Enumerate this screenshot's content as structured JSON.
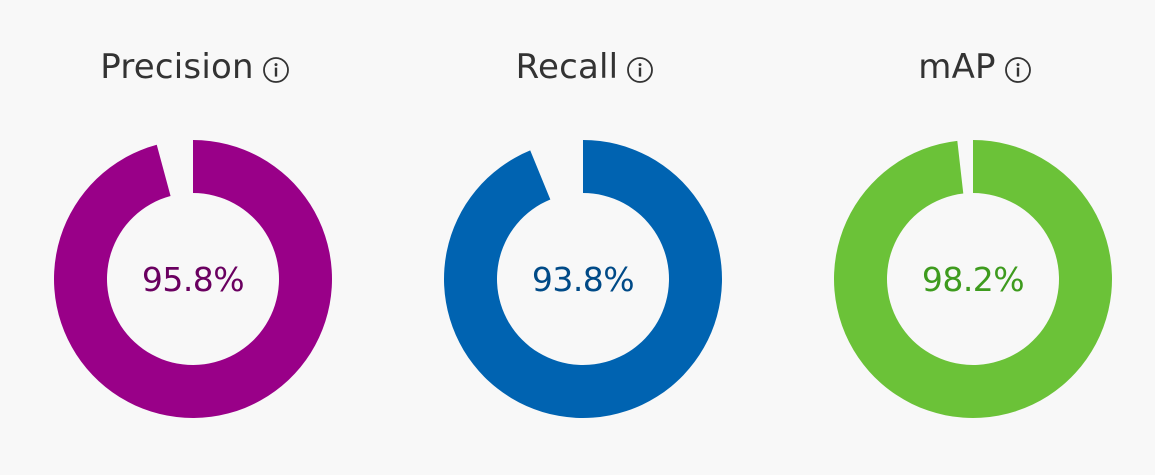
{
  "metrics": [
    {
      "label": "Precision",
      "value_text": "95.8%",
      "value": 95.8,
      "ring_color": "#990088",
      "text_color": "#6a0060",
      "info_icon": "info-icon"
    },
    {
      "label": "Recall",
      "value_text": "93.8%",
      "value": 93.8,
      "ring_color": "#0063b1",
      "text_color": "#004a87",
      "info_icon": "info-icon"
    },
    {
      "label": "mAP",
      "value_text": "98.2%",
      "value": 98.2,
      "ring_color": "#6bc238",
      "text_color": "#3e9b1e",
      "info_icon": "info-icon"
    }
  ]
}
